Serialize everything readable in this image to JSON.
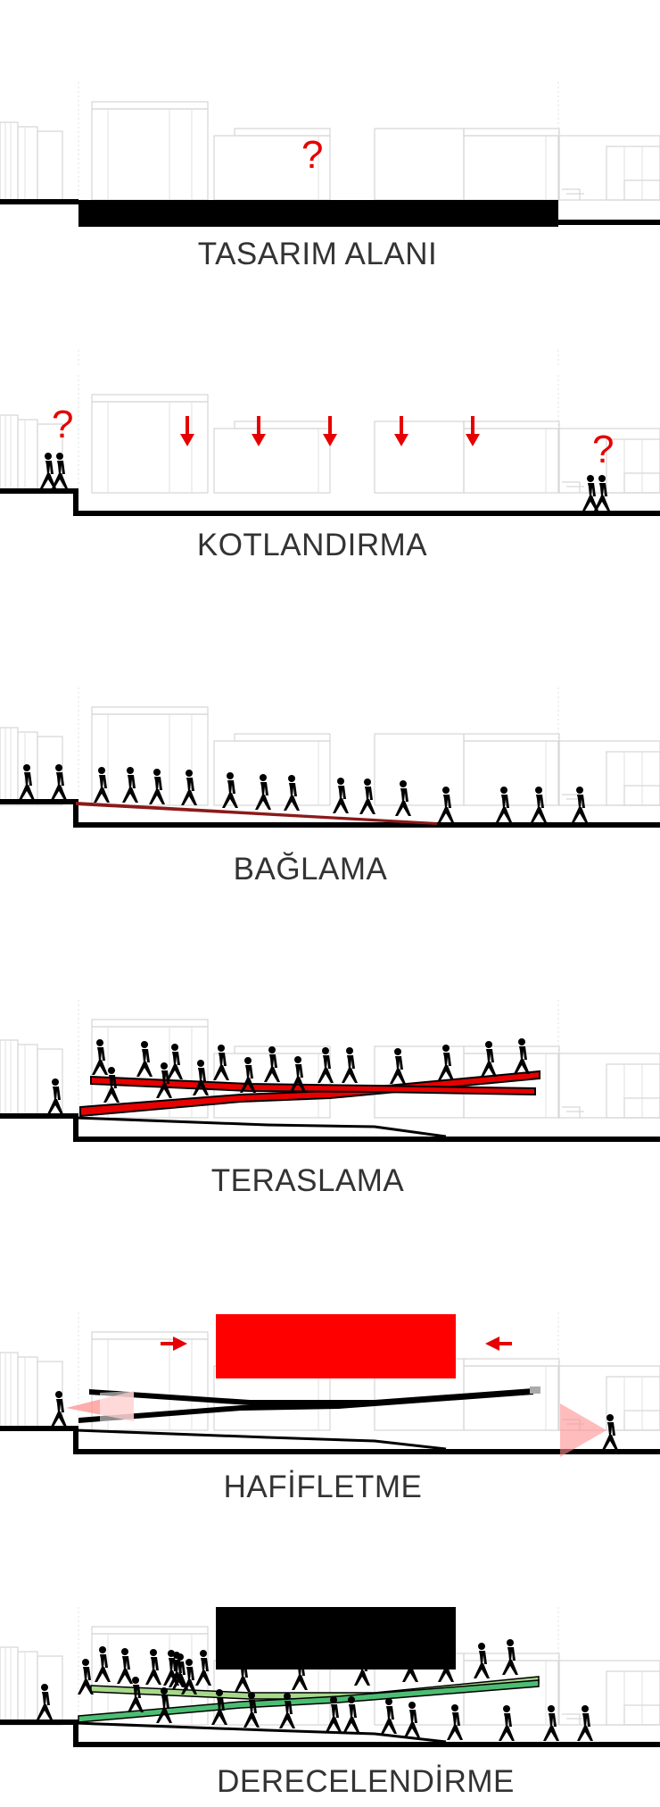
{
  "panels": [
    {
      "title": "TASARIM ALANI",
      "marks": [
        "?"
      ]
    },
    {
      "title": "KOTLANDIRMA",
      "marks": [
        "?",
        "?"
      ]
    },
    {
      "title": "BAĞLAMA"
    },
    {
      "title": "TERASLAMA"
    },
    {
      "title": "HAFİFLETME"
    },
    {
      "title": "DERECELENDİRME"
    }
  ],
  "colors": {
    "accent": "#e60000",
    "ground": "#000000",
    "ghost_lines": "#d6d6d6",
    "green_light": "#a6d88a",
    "green_dark": "#4cbd72",
    "ramp_dark_red": "#8b1a1a"
  }
}
